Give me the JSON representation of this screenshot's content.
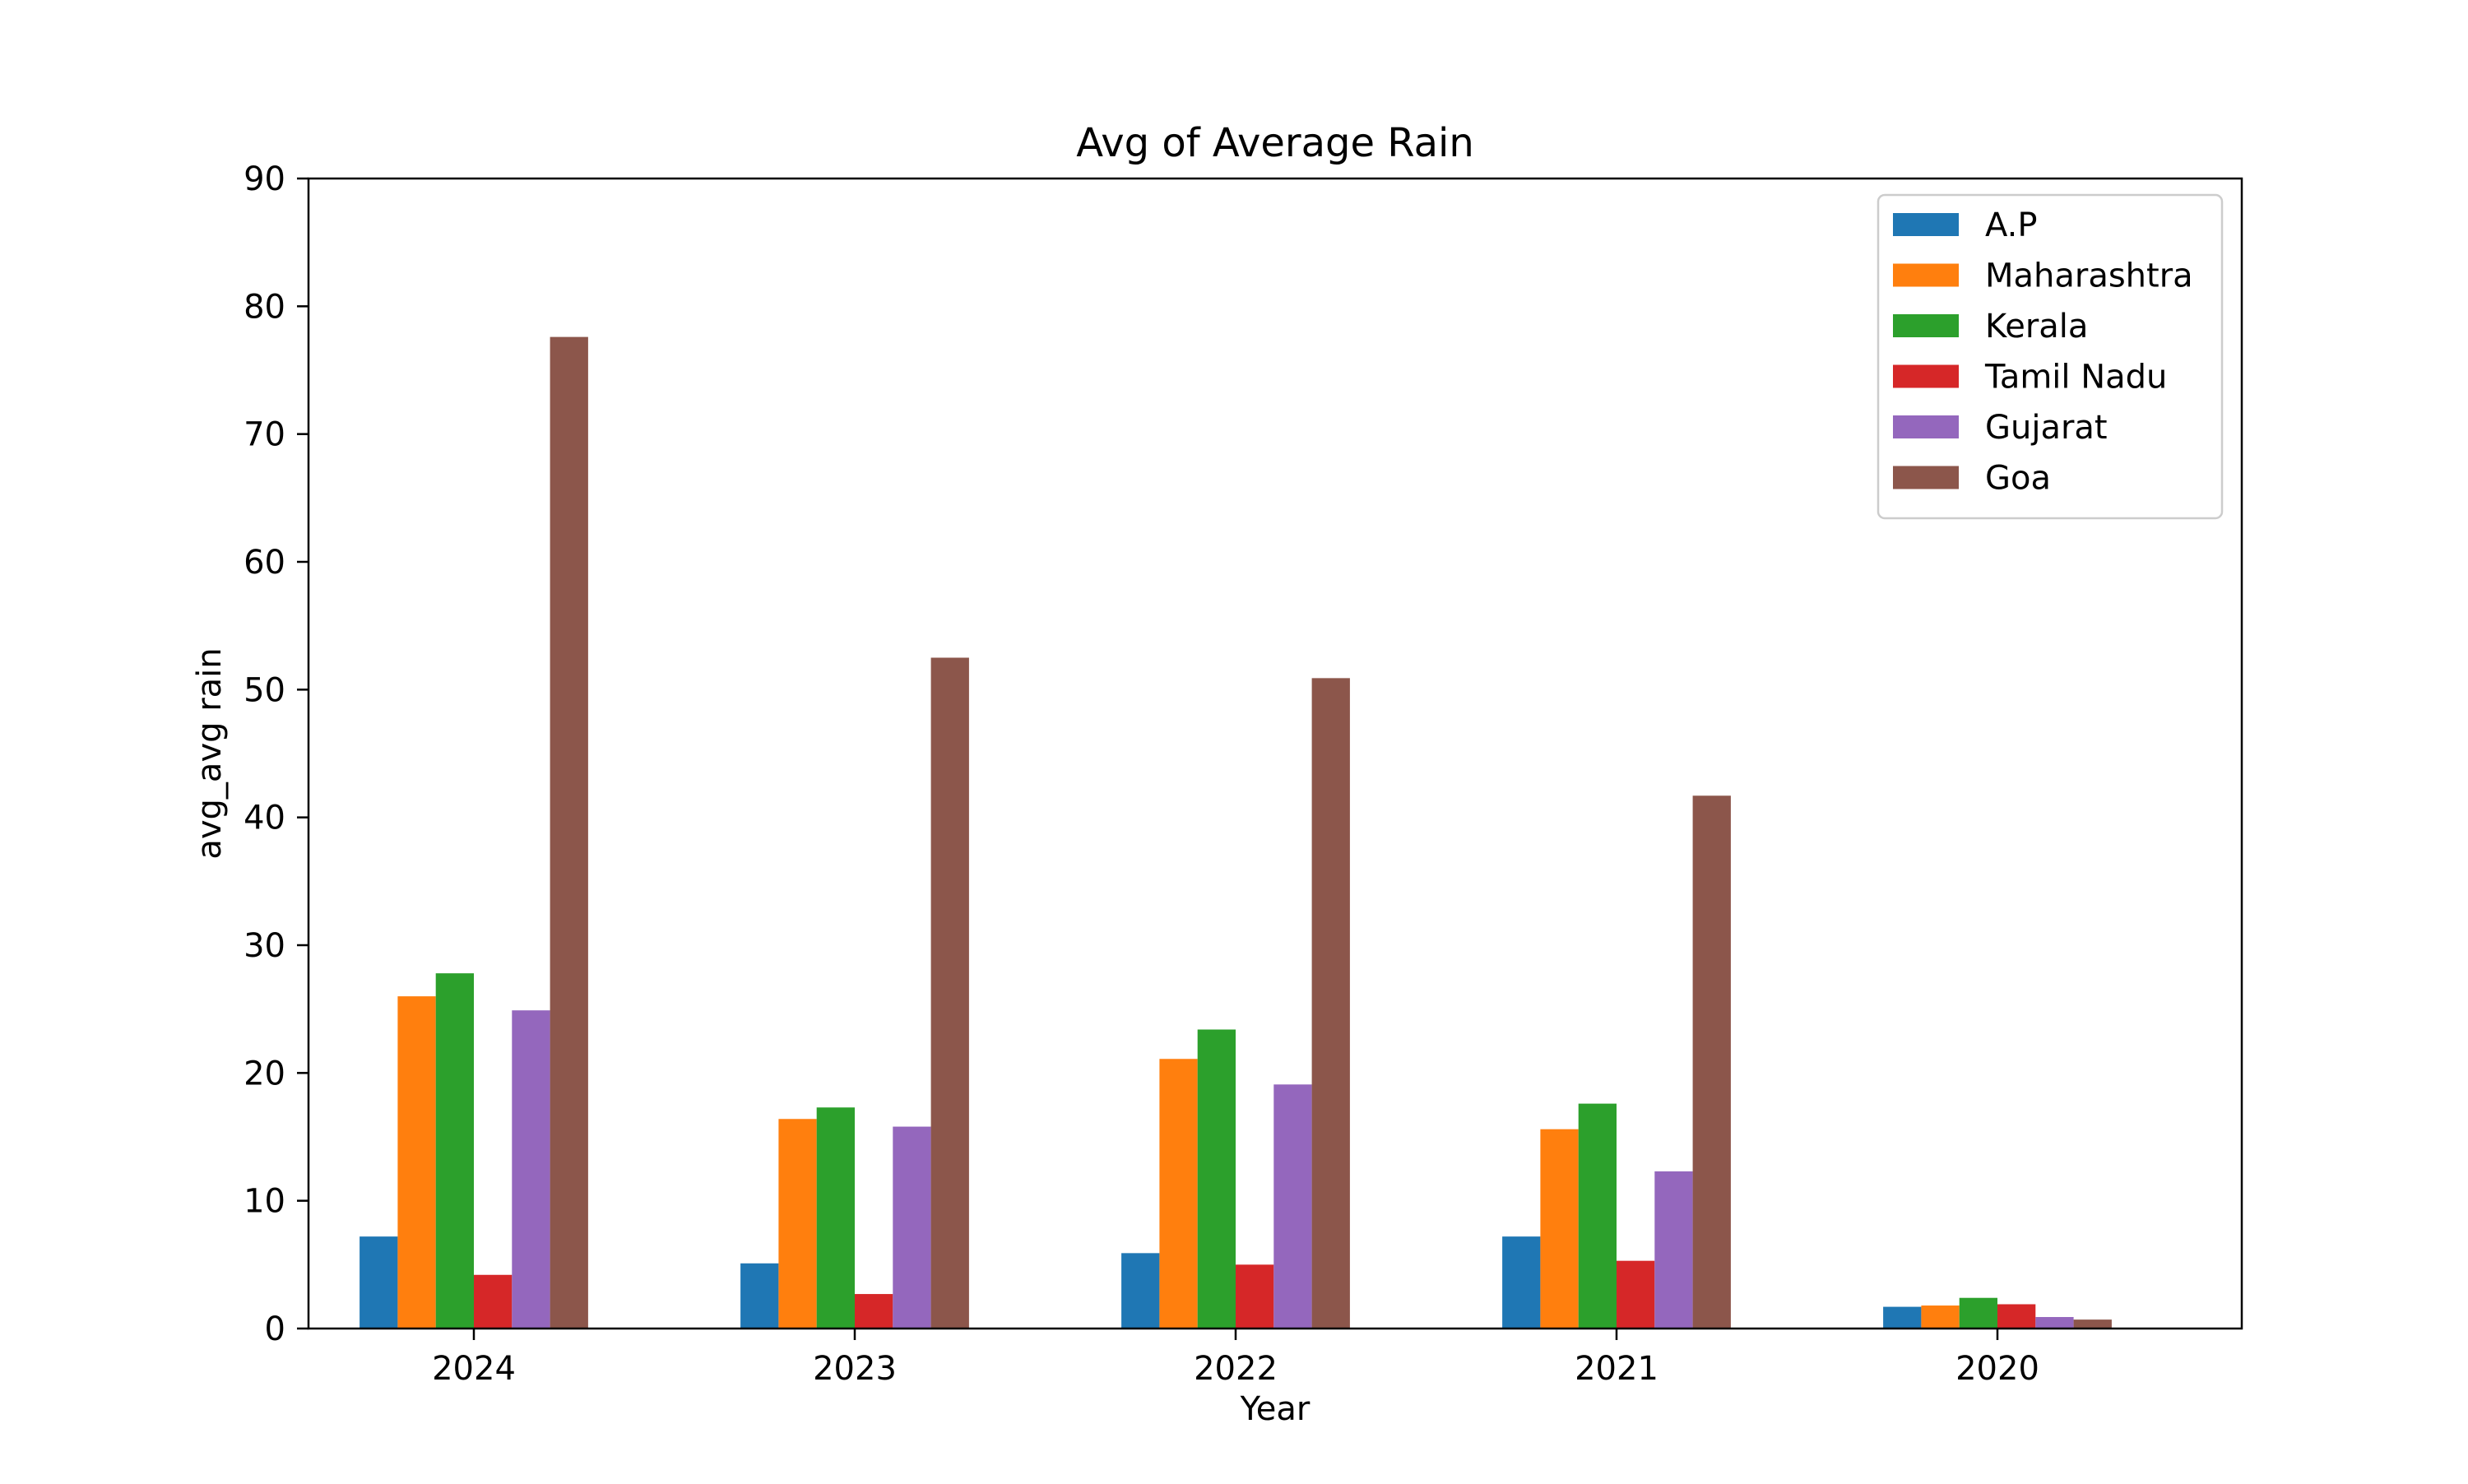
{
  "chart_data": {
    "type": "bar",
    "title": "Avg of Average Rain",
    "xlabel": "Year",
    "ylabel": "avg_avg rain",
    "categories": [
      "2024",
      "2023",
      "2022",
      "2021",
      "2020"
    ],
    "ylim": [
      0,
      90
    ],
    "yticks": [
      0,
      10,
      20,
      30,
      40,
      50,
      60,
      70,
      80,
      90
    ],
    "grid": false,
    "legend_position": "top-right",
    "series": [
      {
        "name": "A.P",
        "color": "#1f77b4",
        "values": [
          7.2,
          5.1,
          5.9,
          7.2,
          1.7
        ]
      },
      {
        "name": "Maharashtra",
        "color": "#ff7f0e",
        "values": [
          26.0,
          16.4,
          21.1,
          15.6,
          1.8
        ]
      },
      {
        "name": "Kerala",
        "color": "#2ca02c",
        "values": [
          27.8,
          17.3,
          23.4,
          17.6,
          2.4
        ]
      },
      {
        "name": "Tamil Nadu",
        "color": "#d62728",
        "values": [
          4.2,
          2.7,
          5.0,
          5.3,
          1.9
        ]
      },
      {
        "name": "Gujarat",
        "color": "#9467bd",
        "values": [
          24.9,
          15.8,
          19.1,
          12.3,
          0.9
        ]
      },
      {
        "name": "Goa",
        "color": "#8c564b",
        "values": [
          77.6,
          52.5,
          50.9,
          41.7,
          0.7
        ]
      }
    ]
  }
}
